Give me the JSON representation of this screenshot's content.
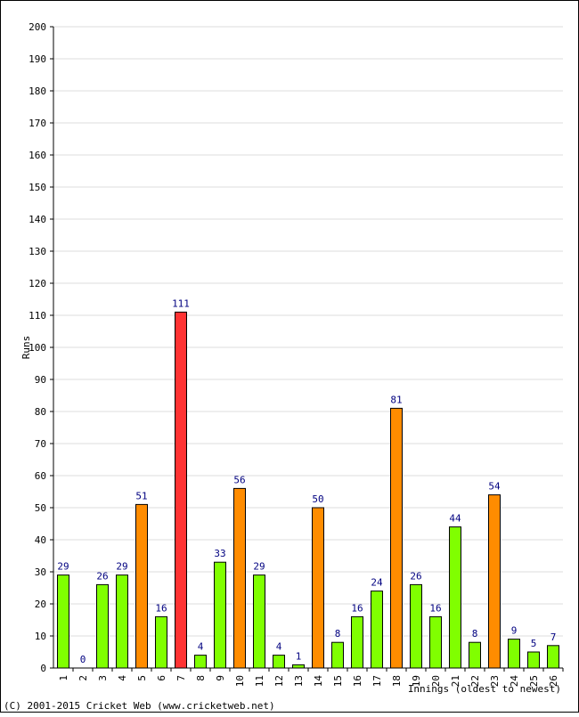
{
  "chart_data": {
    "type": "bar",
    "title": "",
    "xlabel": "Innings (oldest to newest)",
    "ylabel": "Runs",
    "ylim": [
      0,
      200
    ],
    "ytick_step": 10,
    "grid": true,
    "categories": [
      "1",
      "2",
      "3",
      "4",
      "5",
      "6",
      "7",
      "8",
      "9",
      "10",
      "11",
      "12",
      "13",
      "14",
      "15",
      "16",
      "17",
      "18",
      "19",
      "20",
      "21",
      "22",
      "23",
      "24",
      "25",
      "26"
    ],
    "values": [
      29,
      0,
      26,
      29,
      51,
      16,
      111,
      4,
      33,
      56,
      29,
      4,
      1,
      50,
      8,
      16,
      24,
      81,
      26,
      16,
      44,
      8,
      54,
      9,
      5,
      7
    ],
    "bar_colors": {
      "below_50": "#80ff00",
      "fifty_plus": "#ff8c00",
      "hundred_plus": "#ff3333"
    }
  },
  "footer": {
    "copyright": "(C) 2001-2015 Cricket Web (www.cricketweb.net)"
  }
}
